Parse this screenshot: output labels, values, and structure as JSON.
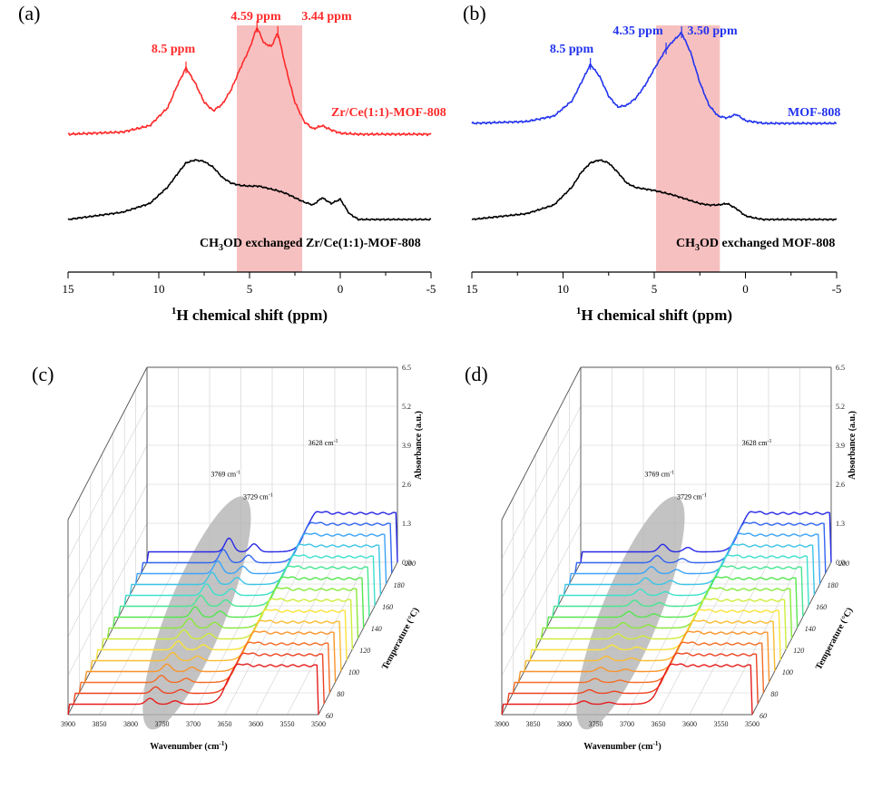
{
  "colors": {
    "red": "#ff2a2a",
    "blue": "#2233ee",
    "black": "#000000",
    "highlight": "#f6b5b5",
    "ellipse": "#b4b4b4"
  },
  "panels": {
    "a": {
      "letter": "(a)"
    },
    "b": {
      "letter": "(b)"
    },
    "c": {
      "letter": "(c)"
    },
    "d": {
      "letter": "(d)"
    }
  },
  "chart_data": [
    {
      "type": "line",
      "panel": "a",
      "xlabel_sup": "1",
      "xlabel": "H chemical shift (ppm)",
      "xlim": [
        15,
        -5
      ],
      "xticks": [
        "15",
        "10",
        "5",
        "0",
        "-5"
      ],
      "highlight_range": [
        5.7,
        2.1
      ],
      "series": [
        {
          "name": "Zr/Ce(1:1)-MOF-808",
          "color": "red",
          "x": [
            15,
            12,
            10.5,
            9.5,
            9,
            8.5,
            8.0,
            7.5,
            7.0,
            6.5,
            6.0,
            5.5,
            5.0,
            4.59,
            4.2,
            3.8,
            3.44,
            3.0,
            2.5,
            2.0,
            1.5,
            1.0,
            0.5,
            0,
            -1,
            -3,
            -5
          ],
          "y": [
            0,
            0.02,
            0.08,
            0.25,
            0.45,
            0.62,
            0.48,
            0.3,
            0.22,
            0.28,
            0.42,
            0.62,
            0.8,
            1.0,
            0.85,
            0.82,
            0.95,
            0.62,
            0.3,
            0.12,
            0.05,
            0.08,
            0.04,
            0.01,
            0,
            0,
            0
          ]
        },
        {
          "name": "CH3OD exchanged Zr/Ce(1:1)-MOF-808",
          "name_main": "CH",
          "name_sub": "3",
          "name_rest": "OD exchanged Zr/Ce(1:1)-MOF-808",
          "color": "black",
          "x": [
            15,
            12,
            10.5,
            9.5,
            9,
            8.5,
            8.0,
            7.5,
            7.0,
            6.5,
            6.0,
            5.5,
            5.0,
            4.5,
            4.0,
            3.5,
            3.0,
            2.5,
            2.0,
            1.5,
            1.0,
            0.5,
            0,
            -0.5,
            -1,
            -3,
            -5
          ],
          "y": [
            0,
            0.1,
            0.22,
            0.45,
            0.62,
            0.78,
            0.82,
            0.8,
            0.72,
            0.58,
            0.5,
            0.47,
            0.46,
            0.46,
            0.43,
            0.4,
            0.36,
            0.3,
            0.24,
            0.2,
            0.3,
            0.22,
            0.28,
            0.08,
            0,
            0,
            0
          ]
        }
      ],
      "annotations": [
        {
          "text": "8.5 ppm",
          "x": 8.5,
          "color": "red"
        },
        {
          "text": "4.59 ppm",
          "x": 4.59,
          "color": "red"
        },
        {
          "text": "3.44 ppm",
          "x": 3.44,
          "color": "red"
        }
      ]
    },
    {
      "type": "line",
      "panel": "b",
      "xlabel_sup": "1",
      "xlabel": "H chemical shift (ppm)",
      "xlim": [
        15,
        -5
      ],
      "xticks": [
        "15",
        "10",
        "5",
        "0",
        "-5"
      ],
      "highlight_range": [
        4.9,
        1.4
      ],
      "series": [
        {
          "name": "MOF-808",
          "color": "blue",
          "x": [
            15,
            12,
            10.5,
            9.5,
            9,
            8.5,
            8.0,
            7.5,
            7.0,
            6.5,
            6.0,
            5.5,
            5.0,
            4.35,
            4.0,
            3.5,
            3.0,
            2.5,
            2.0,
            1.5,
            1.0,
            0.5,
            0,
            -1,
            -3,
            -5
          ],
          "y": [
            0,
            0.02,
            0.08,
            0.25,
            0.45,
            0.65,
            0.52,
            0.3,
            0.18,
            0.2,
            0.28,
            0.42,
            0.6,
            0.82,
            0.9,
            1.0,
            0.78,
            0.45,
            0.2,
            0.08,
            0.06,
            0.1,
            0.03,
            0,
            0,
            0
          ]
        },
        {
          "name": "CH3OD exchanged MOF-808",
          "name_main": "CH",
          "name_sub": "3",
          "name_rest": "OD exchanged MOF-808",
          "color": "black",
          "x": [
            15,
            12,
            10.5,
            9.5,
            9,
            8.5,
            8.0,
            7.5,
            7.0,
            6.5,
            6.0,
            5.5,
            5.0,
            4.5,
            4.0,
            3.5,
            3.0,
            2.5,
            2.0,
            1.5,
            1.0,
            0.5,
            0,
            -0.5,
            -1,
            -3,
            -5
          ],
          "y": [
            0,
            0.08,
            0.2,
            0.45,
            0.65,
            0.78,
            0.82,
            0.78,
            0.65,
            0.5,
            0.44,
            0.42,
            0.4,
            0.37,
            0.34,
            0.3,
            0.26,
            0.22,
            0.2,
            0.2,
            0.22,
            0.15,
            0.05,
            0.02,
            0,
            0,
            0
          ]
        }
      ],
      "annotations": [
        {
          "text": "8.5 ppm",
          "x": 8.5,
          "color": "blue"
        },
        {
          "text": "4.35 ppm",
          "x": 4.35,
          "color": "blue"
        },
        {
          "text": "3.50 ppm",
          "x": 3.5,
          "color": "blue"
        }
      ]
    },
    {
      "type": "line",
      "panel": "c",
      "xlabel": "Wavenumber (cm",
      "xlabel_sup": "-1",
      "xlabel_end": ")",
      "ylabel": "Absorbance (a.u.)",
      "zlabel": "Temperature (°C)",
      "xlim": [
        3900,
        3500
      ],
      "xticks": [
        "3900",
        "3850",
        "3800",
        "3750",
        "3700",
        "3650",
        "3600",
        "3550",
        "3500"
      ],
      "yticks": [
        "0.0",
        "1.3",
        "2.6",
        "3.9",
        "5.2",
        "6.5"
      ],
      "zticks": [
        "60",
        "80",
        "100",
        "120",
        "140",
        "160",
        "180",
        "200"
      ],
      "temperatures": [
        60,
        70,
        80,
        90,
        100,
        110,
        120,
        130,
        140,
        150,
        160,
        170,
        180,
        190,
        200
      ],
      "annotations": [
        {
          "text": "3769 cm",
          "sup": "-1"
        },
        {
          "text": "3729 cm",
          "sup": "-1"
        },
        {
          "text": "3628 cm",
          "sup": "-1"
        }
      ],
      "peak_damping": 1.0
    },
    {
      "type": "line",
      "panel": "d",
      "xlabel": "Wavenumber (cm",
      "xlabel_sup": "-1",
      "xlabel_end": ")",
      "ylabel": "Absorbance (a.u.)",
      "zlabel": "Temperature (°C)",
      "xlim": [
        3900,
        3500
      ],
      "xticks": [
        "3900",
        "3850",
        "3800",
        "3750",
        "3700",
        "3650",
        "3600",
        "3550",
        "3500"
      ],
      "yticks": [
        "0.0",
        "1.3",
        "2.6",
        "3.9",
        "5.2",
        "6.5"
      ],
      "zticks": [
        "60",
        "80",
        "100",
        "120",
        "140",
        "160",
        "180",
        "200"
      ],
      "temperatures": [
        60,
        70,
        80,
        90,
        100,
        110,
        120,
        130,
        140,
        150,
        160,
        170,
        180,
        190,
        200
      ],
      "annotations": [
        {
          "text": "3769 cm",
          "sup": "-1"
        },
        {
          "text": "3729 cm",
          "sup": "-1"
        },
        {
          "text": "3628 cm",
          "sup": "-1"
        }
      ],
      "peak_damping": 0.55
    }
  ]
}
